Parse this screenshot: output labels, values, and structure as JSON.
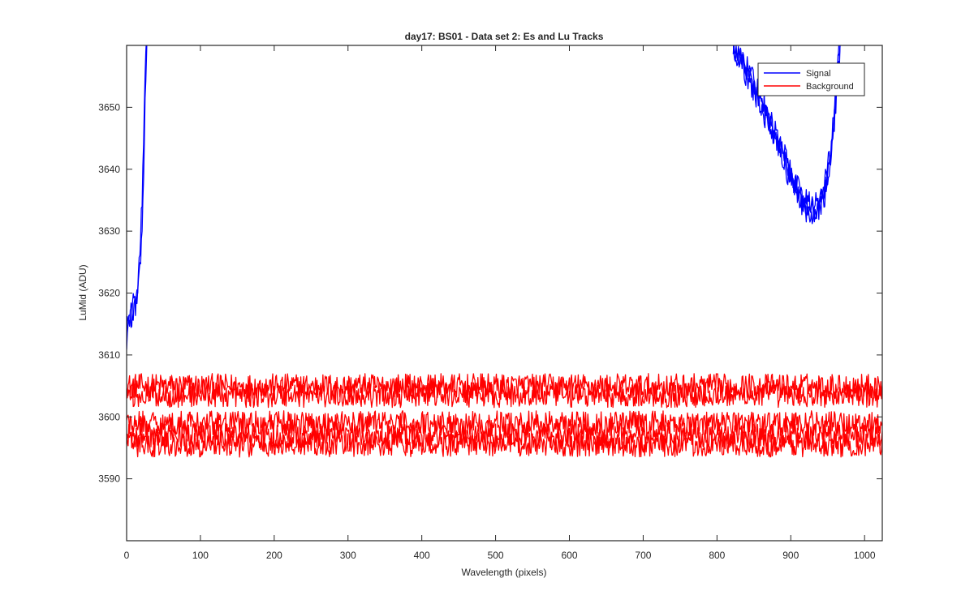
{
  "chart_data": {
    "type": "line",
    "title": "day17: BS01 - Data set 2: Es and Lu Tracks",
    "xlabel": "Wavelength (pixels)",
    "ylabel": "LuMid (ADU)",
    "xlim": [
      0,
      1024
    ],
    "ylim": [
      3580,
      3660
    ],
    "xticks": [
      0,
      100,
      200,
      300,
      400,
      500,
      600,
      700,
      800,
      900,
      1000
    ],
    "yticks": [
      3590,
      3600,
      3610,
      3620,
      3630,
      3640,
      3650
    ],
    "legend": {
      "position": "top-right",
      "entries": [
        "Signal",
        "Background"
      ]
    },
    "colors": {
      "Signal": "#0000ff",
      "Background": "#ff0000"
    },
    "grid": false,
    "series": [
      {
        "name": "Signal",
        "color": "#0000ff",
        "tracks": [
          {
            "x": [
              0,
              3,
              6,
              9,
              12,
              15,
              18,
              21,
              24,
              26,
              28
            ],
            "y": [
              3612,
              3616,
              3618,
              3617,
              3619,
              3621,
              3624,
              3630,
              3645,
              3655,
              3662
            ]
          },
          {
            "x": [
              0,
              3,
              6,
              9,
              12,
              15,
              18,
              21,
              24,
              26,
              28
            ],
            "y": [
              3614,
              3617,
              3615,
              3619,
              3618,
              3620,
              3626,
              3635,
              3650,
              3658,
              3662
            ]
          },
          {
            "x": [
              822,
              840,
              860,
              880,
              900,
              915,
              930,
              945,
              955,
              962,
              968
            ],
            "y": [
              3660,
              3656,
              3651,
              3645,
              3639,
              3634,
              3632,
              3635,
              3642,
              3652,
              3662
            ]
          },
          {
            "x": [
              822,
              840,
              860,
              880,
              900,
              915,
              930,
              945,
              955,
              962,
              968
            ],
            "y": [
              3660,
              3655,
              3650,
              3644,
              3638,
              3635,
              3633,
              3636,
              3643,
              3654,
              3662
            ]
          },
          {
            "x": [
              822,
              840,
              860,
              880,
              900,
              915,
              930,
              945,
              955,
              962,
              968
            ],
            "y": [
              3659,
              3657,
              3652,
              3646,
              3640,
              3636,
              3634,
              3637,
              3644,
              3655,
              3662
            ]
          }
        ]
      },
      {
        "name": "Background",
        "color": "#ff0000",
        "tracks": [
          {
            "x": [
              0,
              1024
            ],
            "y": [
              3605,
              3605
            ]
          },
          {
            "x": [
              0,
              1024
            ],
            "y": [
              3603.5,
              3603.5
            ]
          },
          {
            "x": [
              0,
              1024
            ],
            "y": [
              3599,
              3599
            ]
          },
          {
            "x": [
              0,
              1024
            ],
            "y": [
              3597,
              3597
            ]
          },
          {
            "x": [
              0,
              1024
            ],
            "y": [
              3595.5,
              3595.5
            ]
          }
        ],
        "noise_amplitude": 2.0
      }
    ]
  }
}
